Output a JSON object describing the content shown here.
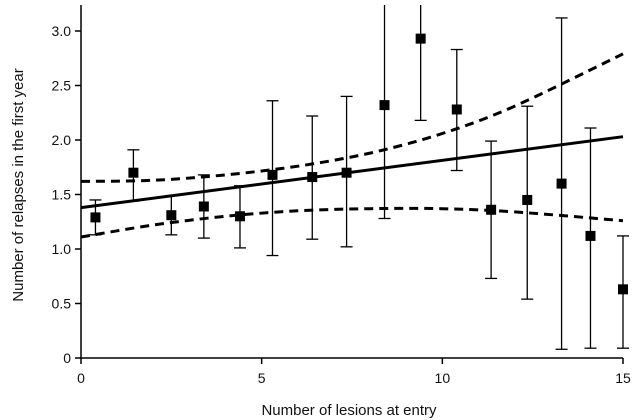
{
  "chart_data": {
    "type": "scatter",
    "title": "",
    "xlabel": "Number of lesions at entry",
    "ylabel": "Number of relapses in the first year",
    "xlim": [
      0,
      15
    ],
    "ylim": [
      0,
      3.0
    ],
    "xticks": [
      0,
      5,
      10,
      15
    ],
    "xtick_labels": [
      "0",
      "5",
      "10",
      "15"
    ],
    "yticks": [
      0,
      0.5,
      1.0,
      1.5,
      2.0,
      2.5,
      3.0
    ],
    "ytick_labels": [
      "0",
      "0.5",
      "1.0",
      "1.5",
      "2.0",
      "2.5",
      "3.0"
    ],
    "grid": false,
    "series": [
      {
        "marker": "square",
        "color": "#000000",
        "points": [
          {
            "x": 0.4,
            "y": 1.29,
            "lo": 1.13,
            "hi": 1.45
          },
          {
            "x": 1.45,
            "y": 1.7,
            "lo": 1.44,
            "hi": 1.91
          },
          {
            "x": 2.5,
            "y": 1.31,
            "lo": 1.13,
            "hi": 1.49
          },
          {
            "x": 3.4,
            "y": 1.39,
            "lo": 1.1,
            "hi": 1.68
          },
          {
            "x": 4.4,
            "y": 1.3,
            "lo": 1.01,
            "hi": 1.58
          },
          {
            "x": 5.3,
            "y": 1.68,
            "lo": 0.94,
            "hi": 2.36
          },
          {
            "x": 6.4,
            "y": 1.66,
            "lo": 1.09,
            "hi": 2.22
          },
          {
            "x": 7.35,
            "y": 1.7,
            "lo": 1.02,
            "hi": 2.4
          },
          {
            "x": 8.4,
            "y": 2.32,
            "lo": 1.28,
            "hi": 3.5
          },
          {
            "x": 9.4,
            "y": 2.93,
            "lo": 2.18,
            "hi": 3.5
          },
          {
            "x": 10.4,
            "y": 2.28,
            "lo": 1.72,
            "hi": 2.83
          },
          {
            "x": 11.35,
            "y": 1.36,
            "lo": 0.73,
            "hi": 1.99
          },
          {
            "x": 12.35,
            "y": 1.45,
            "lo": 0.54,
            "hi": 2.31
          },
          {
            "x": 13.3,
            "y": 1.6,
            "lo": 0.08,
            "hi": 3.12
          },
          {
            "x": 14.1,
            "y": 1.12,
            "lo": 0.09,
            "hi": 2.11
          },
          {
            "x": 15.0,
            "y": 0.63,
            "lo": 0.09,
            "hi": 1.12
          }
        ]
      }
    ],
    "fit_line": {
      "style": "solid",
      "color": "#000000",
      "points": [
        [
          0,
          1.38
        ],
        [
          15,
          2.03
        ]
      ]
    },
    "ci_upper": {
      "style": "dashed",
      "color": "#000000",
      "points": [
        [
          0,
          1.62
        ],
        [
          2,
          1.63
        ],
        [
          4,
          1.68
        ],
        [
          6,
          1.76
        ],
        [
          8,
          1.88
        ],
        [
          10,
          2.06
        ],
        [
          12,
          2.31
        ],
        [
          15,
          2.79
        ]
      ]
    },
    "ci_lower": {
      "style": "dashed",
      "color": "#000000",
      "points": [
        [
          0,
          1.11
        ],
        [
          2,
          1.22
        ],
        [
          4,
          1.3
        ],
        [
          6,
          1.35
        ],
        [
          8,
          1.37
        ],
        [
          10,
          1.37
        ],
        [
          12,
          1.34
        ],
        [
          15,
          1.26
        ]
      ]
    }
  }
}
